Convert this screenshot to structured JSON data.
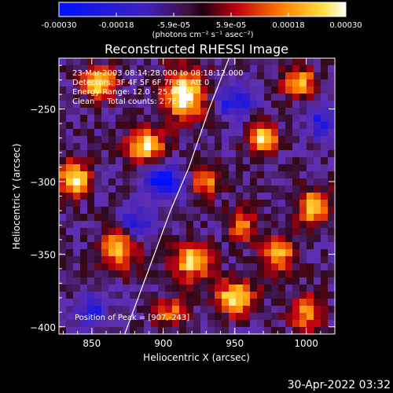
{
  "chart_data": {
    "type": "heatmap",
    "title": "Reconstructed RHESSI Image",
    "xlabel": "Heliocentric X (arcsec)",
    "ylabel": "Heliocentric Y (arcsec)",
    "xlim": [
      827,
      1020
    ],
    "ylim": [
      -405,
      -215
    ],
    "x_ticks": [
      850,
      900,
      950,
      1000
    ],
    "y_ticks": [
      -250,
      -300,
      -350,
      -400
    ],
    "colorbar": {
      "range": [
        -0.0003,
        0.0003
      ],
      "tick_labels": [
        "-0.00030",
        "-0.00018",
        "-5.9e-05",
        "5.9e-05",
        "0.00018",
        "0.00030"
      ],
      "units": "(photons cm⁻² s⁻¹ asec⁻²)"
    },
    "annotations": {
      "time_range": "23-Mar-2003 08:14:28.000 to 08:18:12.000",
      "detectors": "Detectors: 3F 4F 5F 6F 7F 8F, Att 0",
      "energy": "Energy Range: 12.0 - 25.0 keV",
      "clean": "Clean     Total counts: 2.7E+03",
      "peak": "Position of Peak = [907,-243]"
    },
    "limb_curve": [
      [
        873,
        -405
      ],
      [
        890,
        -360
      ],
      [
        905,
        -320
      ],
      [
        918,
        -290
      ],
      [
        932,
        -250
      ],
      [
        946,
        -215
      ]
    ],
    "emission_blobs": [
      {
        "x": 915,
        "y": -240,
        "amp": 1.0,
        "sx": 10,
        "sy": 12
      },
      {
        "x": 855,
        "y": -232,
        "amp": 0.9,
        "sx": 8,
        "sy": 7
      },
      {
        "x": 888,
        "y": -275,
        "amp": 0.85,
        "sx": 9,
        "sy": 8
      },
      {
        "x": 838,
        "y": -298,
        "amp": 0.9,
        "sx": 8,
        "sy": 8
      },
      {
        "x": 930,
        "y": -300,
        "amp": 0.6,
        "sx": 7,
        "sy": 8
      },
      {
        "x": 970,
        "y": -270,
        "amp": 0.8,
        "sx": 7,
        "sy": 7
      },
      {
        "x": 995,
        "y": -232,
        "amp": 0.75,
        "sx": 8,
        "sy": 7
      },
      {
        "x": 1005,
        "y": -318,
        "amp": 0.7,
        "sx": 8,
        "sy": 9
      },
      {
        "x": 870,
        "y": -345,
        "amp": 0.75,
        "sx": 9,
        "sy": 10
      },
      {
        "x": 920,
        "y": -355,
        "amp": 0.8,
        "sx": 9,
        "sy": 9
      },
      {
        "x": 950,
        "y": -380,
        "amp": 0.85,
        "sx": 10,
        "sy": 8
      },
      {
        "x": 980,
        "y": -350,
        "amp": 0.7,
        "sx": 8,
        "sy": 8
      },
      {
        "x": 1000,
        "y": -390,
        "amp": 0.65,
        "sx": 8,
        "sy": 8
      },
      {
        "x": 905,
        "y": -390,
        "amp": 0.5,
        "sx": 8,
        "sy": 7
      },
      {
        "x": 955,
        "y": -330,
        "amp": 0.55,
        "sx": 7,
        "sy": 8
      }
    ],
    "negative_blobs": [
      {
        "x": 900,
        "y": -300,
        "amp": 1.0,
        "sx": 10,
        "sy": 8
      },
      {
        "x": 880,
        "y": -330,
        "amp": 0.9,
        "sx": 8,
        "sy": 8
      },
      {
        "x": 950,
        "y": -245,
        "amp": 0.8,
        "sx": 9,
        "sy": 8
      },
      {
        "x": 1010,
        "y": -260,
        "amp": 0.7,
        "sx": 7,
        "sy": 8
      },
      {
        "x": 850,
        "y": -390,
        "amp": 0.7,
        "sx": 8,
        "sy": 8
      }
    ]
  },
  "timestamp": "30-Apr-2022 03:32"
}
